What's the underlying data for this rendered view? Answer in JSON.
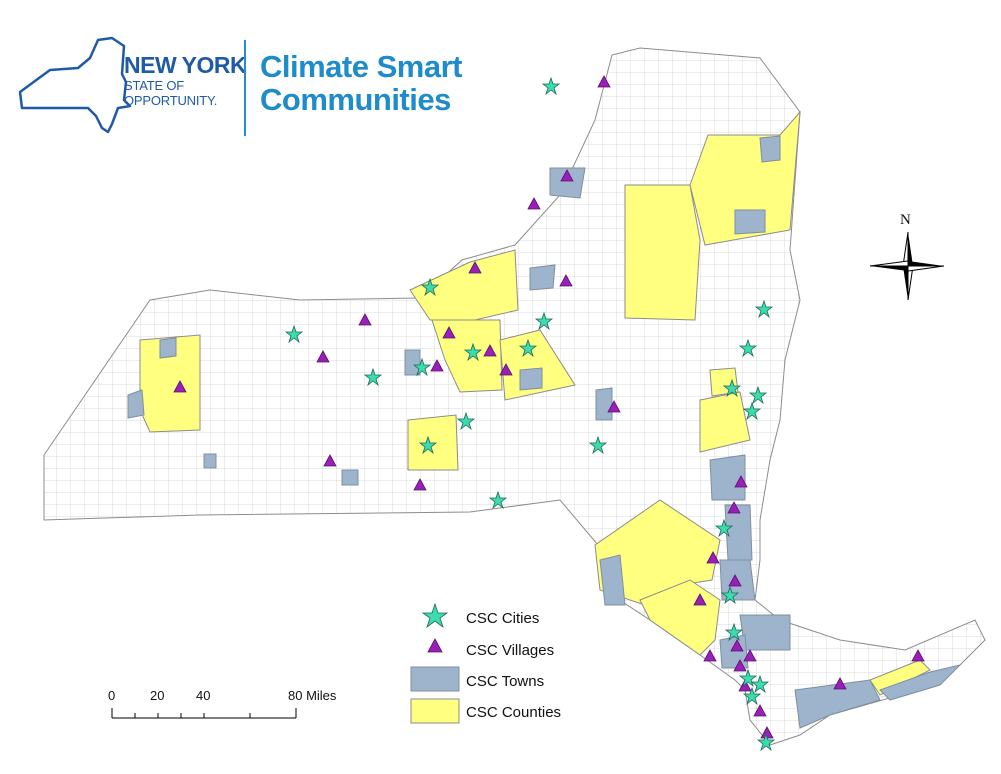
{
  "logo": {
    "state_name": "NEW YORK",
    "state_tagline_1": "STATE OF",
    "state_tagline_2": "OPPORTUNITY.",
    "program_title_1": "Climate Smart",
    "program_title_2": "Communities"
  },
  "legend": {
    "items": [
      {
        "label": "CSC Cities",
        "symbol": "star",
        "color": "#3ddbb0"
      },
      {
        "label": "CSC Villages",
        "symbol": "triangle",
        "color": "#9a1fb8"
      },
      {
        "label": "CSC Towns",
        "symbol": "box",
        "color": "#9db4cc"
      },
      {
        "label": "CSC Counties",
        "symbol": "box",
        "color": "#ffff80"
      }
    ]
  },
  "scale_bar": {
    "ticks": [
      "0",
      "20",
      "40",
      "80 Miles"
    ]
  },
  "compass": {
    "north_label": "N"
  },
  "colors": {
    "state_fill": "#ffffff",
    "boundary": "#8c8c8c",
    "county": "#ffff80",
    "town": "#9db4cc",
    "city_star": "#3ddbb0",
    "village_triangle": "#9a1fb8",
    "logo_blue": "#1f5aa6",
    "title_blue": "#1e8bcb"
  }
}
